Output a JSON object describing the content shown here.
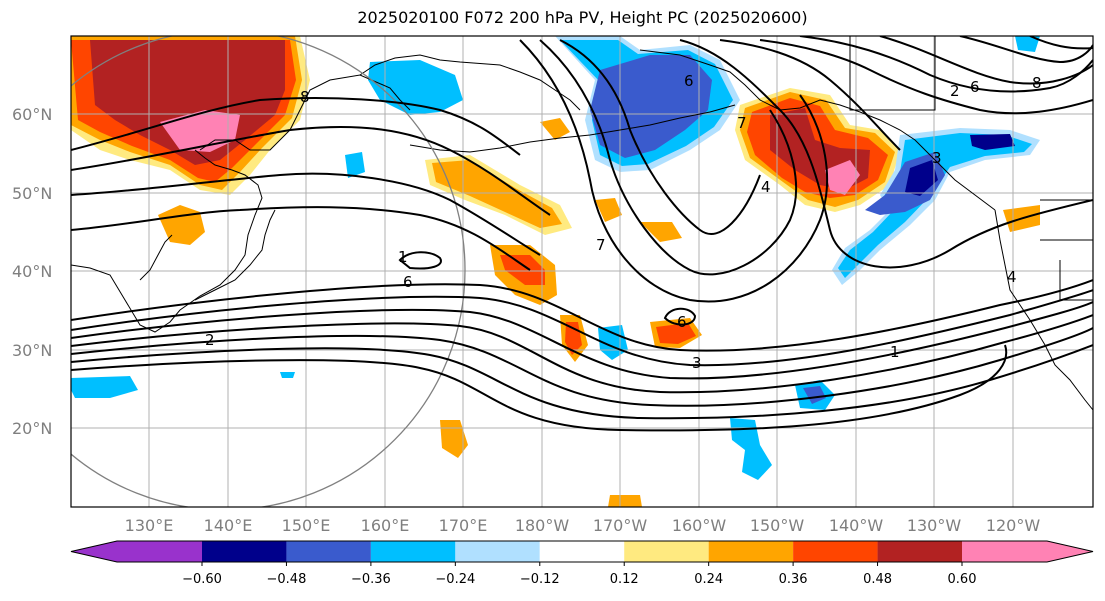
{
  "title": "2025020100 F072 200 hPa PV, Height PC (2025020600)",
  "map": {
    "lat_labels": [
      "20°N",
      "30°N",
      "40°N",
      "50°N",
      "60°N"
    ],
    "lon_labels": [
      "130°E",
      "140°E",
      "150°E",
      "160°E",
      "170°E",
      "180°W",
      "170°W",
      "160°W",
      "150°W",
      "140°W",
      "130°W",
      "120°W"
    ],
    "contour_labels": [
      "8",
      "2",
      "6",
      "1",
      "7",
      "3",
      "6",
      "7",
      "4",
      "6",
      "1",
      "3",
      "2",
      "6",
      "8",
      "4"
    ],
    "contour_color": "#000000",
    "coastline_color": "#000000",
    "grid_color": "#b0b0b0",
    "circle_color": "#808080"
  },
  "colorbar": {
    "ticks": [
      "−0.60",
      "−0.48",
      "−0.36",
      "−0.24",
      "−0.12",
      "0.12",
      "0.24",
      "0.36",
      "0.48",
      "0.60"
    ],
    "colors": [
      "#9932cc",
      "#00008b",
      "#3a5bcd",
      "#00bfff",
      "#b0e0ff",
      "#ffffff",
      "#ffea80",
      "#ffa500",
      "#ff4500",
      "#b22222",
      "#ff82b4"
    ]
  }
}
